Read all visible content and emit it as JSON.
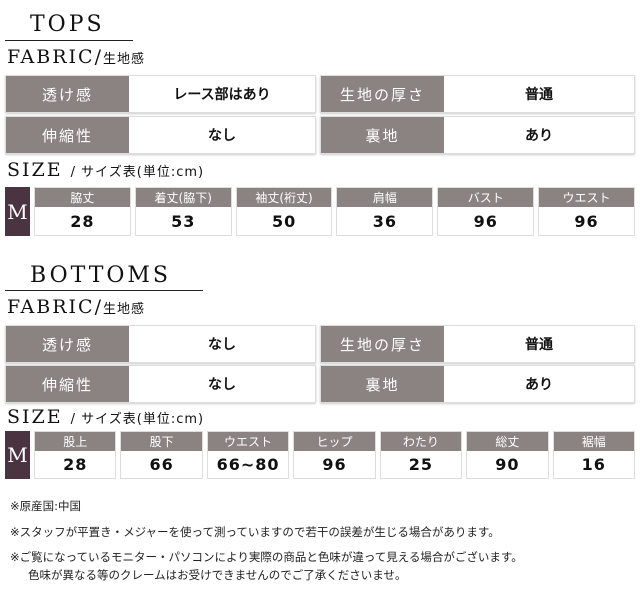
{
  "tops": {
    "title": "TOPS",
    "fabric_title": "FABRIC/",
    "fabric_sub": "生地感",
    "fabric": [
      {
        "label": "透け感",
        "value": "レース部はあり"
      },
      {
        "label": "生地の厚さ",
        "value": "普通"
      },
      {
        "label": "伸縮性",
        "value": "なし"
      },
      {
        "label": "裏地",
        "value": "あり"
      }
    ],
    "size_title": "SIZE",
    "size_sub": "/ サイズ表(単位:cm)",
    "size_label": "M",
    "sizes": [
      {
        "h": "脇丈",
        "v": "28"
      },
      {
        "h": "着丈(脇下)",
        "v": "53"
      },
      {
        "h": "袖丈(裄丈)",
        "v": "50"
      },
      {
        "h": "肩幅",
        "v": "36"
      },
      {
        "h": "バスト",
        "v": "96"
      },
      {
        "h": "ウエスト",
        "v": "96"
      }
    ]
  },
  "bottoms": {
    "title": "BOTTOMS",
    "fabric_title": "FABRIC/",
    "fabric_sub": "生地感",
    "fabric": [
      {
        "label": "透け感",
        "value": "なし"
      },
      {
        "label": "生地の厚さ",
        "value": "普通"
      },
      {
        "label": "伸縮性",
        "value": "なし"
      },
      {
        "label": "裏地",
        "value": "あり"
      }
    ],
    "size_title": "SIZE",
    "size_sub": "/ サイズ表(単位:cm)",
    "size_label": "M",
    "sizes": [
      {
        "h": "股上",
        "v": "28"
      },
      {
        "h": "股下",
        "v": "66"
      },
      {
        "h": "ウエスト",
        "v": "66~80"
      },
      {
        "h": "ヒップ",
        "v": "96"
      },
      {
        "h": "わたり",
        "v": "25"
      },
      {
        "h": "総丈",
        "v": "90"
      },
      {
        "h": "裾幅",
        "v": "16"
      }
    ]
  },
  "notes": [
    "※原産国:中国",
    "※スタッフが平置き・メジャーを使って測っていますので若干の誤差が生じる場合があります。",
    "※ご覧になっているモニター・パソコンにより実際の商品と色味が違って見える場合がございます。",
    "色味が異なる等のクレームはお受けできませんのでご了承くださいませ。"
  ],
  "colors": {
    "label_bg": "#8b8381",
    "size_badge": "#4a3441"
  }
}
